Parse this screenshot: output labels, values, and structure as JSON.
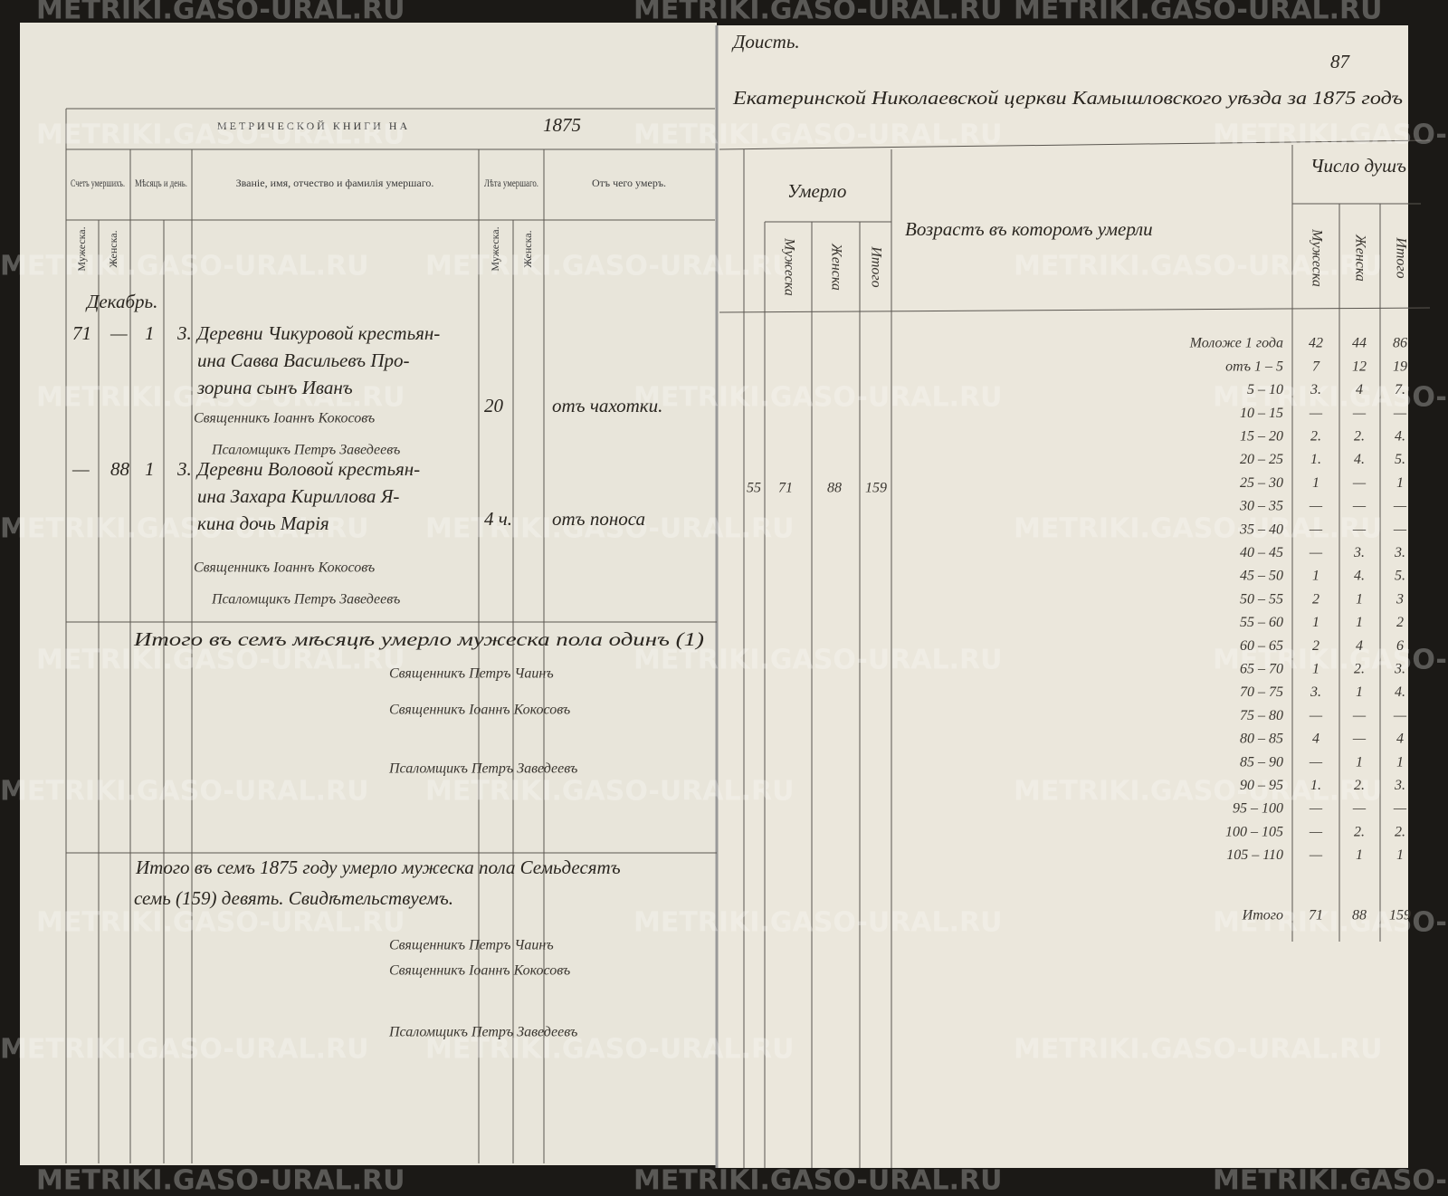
{
  "watermark": "METRIKI.GASO-URAL.RU",
  "left_page": {
    "title": "МЕТРИЧЕСКОЙ КНИГИ НА",
    "year": "1875",
    "columns": [
      "Счетъ умершихъ.",
      "Мѣсяцъ и день.",
      "Званіе, имя, отчество и фамилія умершаго.",
      "Лѣта умершаго.",
      "Отъ чего умеръ."
    ],
    "subcolumns": [
      "Мужеска.",
      "Женска."
    ],
    "month": "Декабрь.",
    "entries": [
      {
        "male": "71",
        "female": "—",
        "month_day": "1",
        "day": "3.",
        "text": [
          "Деревни Чикуровой крестьян-",
          "ина Савва Васильевъ Про-",
          "зорина сынъ Иванъ"
        ],
        "age": "20",
        "cause": "отъ чахотки.",
        "signatures": [
          "Священникъ Іоаннъ Кокосовъ",
          "Псаломщикъ Петръ Заведеевъ"
        ]
      },
      {
        "male": "—",
        "female": "88",
        "month_day": "1",
        "day": "3.",
        "text": [
          "Деревни Воловой крестьян-",
          "ина Захара Кириллова Я-",
          "кина дочь Марія"
        ],
        "age": "4 ч.",
        "cause": "отъ поноса",
        "signatures": [
          "Священникъ Іоаннъ Кокосовъ",
          "Псаломщикъ Петръ Заведеевъ"
        ]
      }
    ],
    "month_total": "Итого въ семъ мѣсяцѣ умерло мужеска пола одинъ (1)",
    "month_signatures": [
      "Священникъ Петръ Чаинъ",
      "Священникъ Іоаннъ Кокосовъ",
      "Псаломщикъ Петръ Заведеевъ"
    ],
    "year_total": [
      "Итого въ семъ 1875 году умерло мужеска пола Семьдесятъ",
      "семь (159) девять. Свидѣтельствуемъ."
    ],
    "year_signatures": [
      "Священникъ Петръ Чаинъ",
      "Священникъ Іоаннъ Кокосовъ",
      "Псаломщикъ Петръ Заведеевъ"
    ]
  },
  "right_page": {
    "corner": "Доисть.",
    "page_number": "87",
    "title": "Екатеринской Николаевской церкви Камышловского уѣзда за 1875 годъ",
    "died_header": "Умерло",
    "died_subcolumns": [
      "Мужеска",
      "Женска",
      "Итого"
    ],
    "died_totals": [
      "55",
      "71",
      "88",
      "159"
    ],
    "age_header": "Возрастъ въ которомъ умерли",
    "souls_header": "Число душъ",
    "souls_subcolumns": [
      "Мужеска",
      "Женска",
      "Итого"
    ],
    "rows": [
      [
        "Моложе 1 года",
        "42",
        "44",
        "86"
      ],
      [
        "отъ 1 – 5",
        "7",
        "12",
        "19"
      ],
      [
        "5 – 10",
        "3.",
        "4",
        "7."
      ],
      [
        "10 – 15",
        "—",
        "—",
        "—"
      ],
      [
        "15 – 20",
        "2.",
        "2.",
        "4."
      ],
      [
        "20 – 25",
        "1.",
        "4.",
        "5."
      ],
      [
        "25 – 30",
        "1",
        "—",
        "1"
      ],
      [
        "30 – 35",
        "—",
        "—",
        "—"
      ],
      [
        "35 – 40",
        "—",
        "—",
        "—"
      ],
      [
        "40 – 45",
        "—",
        "3.",
        "3."
      ],
      [
        "45 – 50",
        "1",
        "4.",
        "5."
      ],
      [
        "50 – 55",
        "2",
        "1",
        "3"
      ],
      [
        "55 – 60",
        "1",
        "1",
        "2"
      ],
      [
        "60 – 65",
        "2",
        "4",
        "6"
      ],
      [
        "65 – 70",
        "1",
        "2.",
        "3."
      ],
      [
        "70 – 75",
        "3.",
        "1",
        "4."
      ],
      [
        "75 – 80",
        "—",
        "—",
        "—"
      ],
      [
        "80 – 85",
        "4",
        "—",
        "4"
      ],
      [
        "85 – 90",
        "—",
        "1",
        "1"
      ],
      [
        "90 – 95",
        "1.",
        "2.",
        "3."
      ],
      [
        "95 – 100",
        "—",
        "—",
        "—"
      ],
      [
        "100 – 105",
        "—",
        "2.",
        "2."
      ],
      [
        "105 – 110",
        "—",
        "1",
        "1"
      ]
    ],
    "total_row": [
      "Итого",
      "71",
      "88",
      "159"
    ]
  }
}
